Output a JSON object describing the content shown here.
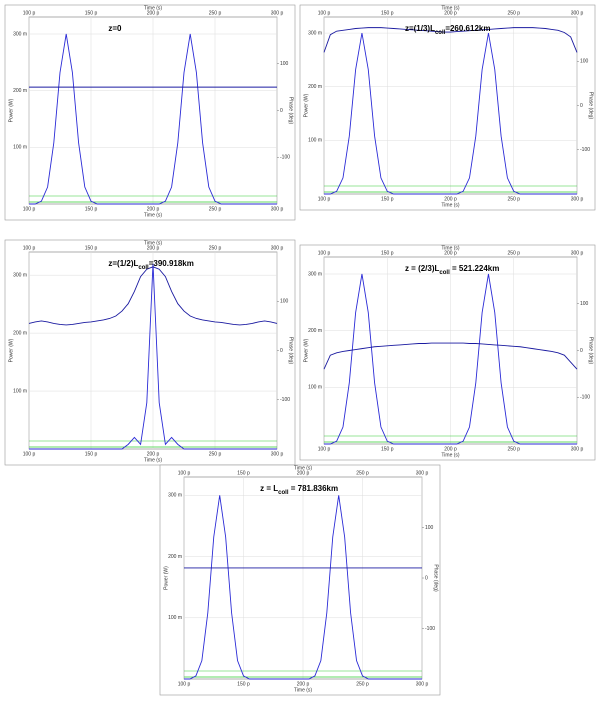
{
  "chart_data": [
    {
      "type": "line",
      "title": "z=0",
      "x_label": "Time (s)",
      "y_label": "Power (W)",
      "y2_label": "Phase (deg)",
      "x": [
        100,
        105,
        110,
        115,
        120,
        125,
        130,
        135,
        140,
        145,
        150,
        155,
        160,
        165,
        170,
        175,
        180,
        185,
        190,
        195,
        200,
        205,
        210,
        215,
        220,
        225,
        230,
        235,
        240,
        245,
        250,
        255,
        260,
        265,
        270,
        275,
        280,
        285,
        290,
        295,
        300
      ],
      "xlim": [
        100,
        300
      ],
      "xticks": [
        {
          "value": 100,
          "label": "100 p"
        },
        {
          "value": 150,
          "label": "150 p"
        },
        {
          "value": 200,
          "label": "200 p"
        },
        {
          "value": 250,
          "label": "250 p"
        },
        {
          "value": 300,
          "label": "300 p"
        }
      ],
      "ylim": [
        0,
        330
      ],
      "yticks": [
        {
          "value": 100,
          "label": "100 m"
        },
        {
          "value": 200,
          "label": "200 m"
        },
        {
          "value": 300,
          "label": "300 m"
        }
      ],
      "y2lim": [
        -200,
        200
      ],
      "y2ticks": [
        -100,
        0,
        100
      ],
      "grid": true,
      "series": [
        {
          "color": "#2b2bd6",
          "values": [
            0,
            0,
            5,
            30,
            108,
            232,
            300,
            232,
            108,
            30,
            5,
            0,
            0,
            0,
            0,
            0,
            0,
            0,
            0,
            0,
            0,
            0,
            5,
            30,
            108,
            232,
            300,
            232,
            108,
            30,
            5,
            0,
            0,
            0,
            0,
            0,
            0,
            0,
            0,
            0,
            0
          ]
        },
        {
          "color": "#1a1aa0",
          "axis": "y2",
          "values": [
            50,
            50,
            50,
            50,
            50,
            50,
            50,
            50,
            50,
            50,
            50,
            50,
            50,
            50,
            50,
            50,
            50,
            50,
            50,
            50,
            50,
            50,
            50,
            50,
            50,
            50,
            50,
            50,
            50,
            50,
            50,
            50,
            50,
            50,
            50,
            50,
            50,
            50,
            50,
            50,
            50
          ]
        }
      ]
    },
    {
      "type": "line",
      "title": "z=(1/3)L",
      "title_sub": "coll",
      "title_end": "=260.612km",
      "x_label": "Time (s)",
      "y_label": "Power (W)",
      "y2_label": "Phase (deg)",
      "x": [
        100,
        105,
        110,
        115,
        120,
        125,
        130,
        135,
        140,
        145,
        150,
        155,
        160,
        165,
        170,
        175,
        180,
        185,
        190,
        195,
        200,
        205,
        210,
        215,
        220,
        225,
        230,
        235,
        240,
        245,
        250,
        255,
        260,
        265,
        270,
        275,
        280,
        285,
        290,
        295,
        300
      ],
      "xlim": [
        100,
        300
      ],
      "xticks": [
        {
          "value": 100,
          "label": "100 p"
        },
        {
          "value": 150,
          "label": "150 p"
        },
        {
          "value": 200,
          "label": "200 p"
        },
        {
          "value": 250,
          "label": "250 p"
        },
        {
          "value": 300,
          "label": "300 p"
        }
      ],
      "ylim": [
        0,
        330
      ],
      "yticks": [
        {
          "value": 100,
          "label": "100 m"
        },
        {
          "value": 200,
          "label": "200 m"
        },
        {
          "value": 300,
          "label": "300 m"
        }
      ],
      "y2lim": [
        -200,
        200
      ],
      "y2ticks": [
        -100,
        0,
        100
      ],
      "grid": true,
      "series": [
        {
          "color": "#2b2bd6",
          "values": [
            0,
            0,
            5,
            30,
            108,
            232,
            300,
            232,
            108,
            30,
            5,
            0,
            0,
            0,
            0,
            0,
            0,
            0,
            0,
            0,
            0,
            0,
            5,
            30,
            108,
            232,
            300,
            232,
            108,
            30,
            5,
            0,
            0,
            0,
            0,
            0,
            0,
            0,
            0,
            0,
            0
          ]
        },
        {
          "color": "#1a1aa0",
          "axis": "y2",
          "values": [
            120,
            160,
            168,
            170,
            172,
            174,
            175,
            176,
            176,
            176,
            175,
            174,
            173,
            172,
            171,
            170,
            169,
            168,
            167,
            166,
            166,
            167,
            168,
            169,
            170,
            171,
            172,
            173,
            174,
            175,
            176,
            176,
            176,
            176,
            175,
            174,
            172,
            170,
            165,
            155,
            120
          ]
        }
      ]
    },
    {
      "type": "line",
      "title": "z=(1/2)L",
      "title_sub": "coll",
      "title_end": "=390.918km",
      "x_label": "Time (s)",
      "y_label": "Power (W)",
      "y2_label": "Phase (deg)",
      "x": [
        100,
        105,
        110,
        115,
        120,
        125,
        130,
        135,
        140,
        145,
        150,
        155,
        160,
        165,
        170,
        175,
        180,
        185,
        190,
        195,
        200,
        205,
        210,
        215,
        220,
        225,
        230,
        235,
        240,
        245,
        250,
        255,
        260,
        265,
        270,
        275,
        280,
        285,
        290,
        295,
        300
      ],
      "xlim": [
        100,
        300
      ],
      "xticks": [
        {
          "value": 100,
          "label": "100 p"
        },
        {
          "value": 150,
          "label": "150 p"
        },
        {
          "value": 200,
          "label": "200 p"
        },
        {
          "value": 250,
          "label": "250 p"
        },
        {
          "value": 300,
          "label": "300 p"
        }
      ],
      "ylim": [
        0,
        340
      ],
      "yticks": [
        {
          "value": 100,
          "label": "100 m"
        },
        {
          "value": 200,
          "label": "200 m"
        },
        {
          "value": 300,
          "label": "300 m"
        }
      ],
      "y2lim": [
        -200,
        200
      ],
      "y2ticks": [
        -100,
        0,
        100
      ],
      "grid": true,
      "series": [
        {
          "color": "#2b2bd6",
          "values": [
            0,
            0,
            0,
            0,
            0,
            0,
            0,
            0,
            0,
            0,
            0,
            0,
            0,
            0,
            0,
            0,
            8,
            20,
            8,
            80,
            320,
            80,
            8,
            20,
            8,
            0,
            0,
            0,
            0,
            0,
            0,
            0,
            0,
            0,
            0,
            0,
            0,
            0,
            0,
            0,
            0
          ]
        },
        {
          "color": "#1a1aa0",
          "axis": "y2",
          "values": [
            55,
            58,
            60,
            58,
            55,
            53,
            52,
            53,
            55,
            57,
            58,
            60,
            62,
            65,
            70,
            80,
            95,
            120,
            150,
            165,
            170,
            165,
            150,
            120,
            95,
            80,
            70,
            65,
            62,
            60,
            58,
            57,
            55,
            53,
            52,
            53,
            55,
            58,
            60,
            58,
            55
          ]
        }
      ]
    },
    {
      "type": "line",
      "title": "z = (2/3)L",
      "title_sub": "coll",
      "title_end": " = 521.224km",
      "x_label": "Time (s)",
      "y_label": "Power (W)",
      "y2_label": "Phase (deg)",
      "x": [
        100,
        105,
        110,
        115,
        120,
        125,
        130,
        135,
        140,
        145,
        150,
        155,
        160,
        165,
        170,
        175,
        180,
        185,
        190,
        195,
        200,
        205,
        210,
        215,
        220,
        225,
        230,
        235,
        240,
        245,
        250,
        255,
        260,
        265,
        270,
        275,
        280,
        285,
        290,
        295,
        300
      ],
      "xlim": [
        100,
        300
      ],
      "xticks": [
        {
          "value": 100,
          "label": "100 p"
        },
        {
          "value": 150,
          "label": "150 p"
        },
        {
          "value": 200,
          "label": "200 p"
        },
        {
          "value": 250,
          "label": "250 p"
        },
        {
          "value": 300,
          "label": "300 p"
        }
      ],
      "ylim": [
        0,
        330
      ],
      "yticks": [
        {
          "value": 100,
          "label": "100 m"
        },
        {
          "value": 200,
          "label": "200 m"
        },
        {
          "value": 300,
          "label": "300 m"
        }
      ],
      "y2lim": [
        -200,
        200
      ],
      "y2ticks": [
        -100,
        0,
        100
      ],
      "grid": true,
      "series": [
        {
          "color": "#2b2bd6",
          "values": [
            0,
            0,
            5,
            30,
            108,
            232,
            300,
            232,
            108,
            30,
            5,
            0,
            0,
            0,
            0,
            0,
            0,
            0,
            0,
            0,
            0,
            0,
            5,
            30,
            108,
            232,
            300,
            232,
            108,
            30,
            5,
            0,
            0,
            0,
            0,
            0,
            0,
            0,
            0,
            0,
            0
          ]
        },
        {
          "color": "#1a1aa0",
          "axis": "y2",
          "values": [
            -40,
            -10,
            -5,
            -2,
            0,
            2,
            4,
            6,
            8,
            9,
            10,
            11,
            12,
            13,
            14,
            15,
            15,
            16,
            16,
            16,
            16,
            16,
            16,
            15,
            15,
            14,
            13,
            12,
            11,
            10,
            9,
            8,
            6,
            4,
            2,
            0,
            -2,
            -5,
            -10,
            -25,
            -40
          ]
        }
      ]
    },
    {
      "type": "line",
      "title": "z = L",
      "title_sub": "coll",
      "title_end": " = 781.836km",
      "x_label": "Time (s)",
      "y_label": "Power (W)",
      "y2_label": "Phase (deg)",
      "x": [
        100,
        105,
        110,
        115,
        120,
        125,
        130,
        135,
        140,
        145,
        150,
        155,
        160,
        165,
        170,
        175,
        180,
        185,
        190,
        195,
        200,
        205,
        210,
        215,
        220,
        225,
        230,
        235,
        240,
        245,
        250,
        255,
        260,
        265,
        270,
        275,
        280,
        285,
        290,
        295,
        300
      ],
      "xlim": [
        100,
        300
      ],
      "xticks": [
        {
          "value": 100,
          "label": "100 p"
        },
        {
          "value": 150,
          "label": "150 p"
        },
        {
          "value": 200,
          "label": "200 p"
        },
        {
          "value": 250,
          "label": "250 p"
        },
        {
          "value": 300,
          "label": "300 p"
        }
      ],
      "ylim": [
        0,
        330
      ],
      "yticks": [
        {
          "value": 100,
          "label": "100 m"
        },
        {
          "value": 200,
          "label": "200 m"
        },
        {
          "value": 300,
          "label": "300 m"
        }
      ],
      "y2lim": [
        -200,
        200
      ],
      "y2ticks": [
        -100,
        0,
        100
      ],
      "grid": true,
      "series": [
        {
          "color": "#2b2bd6",
          "values": [
            0,
            0,
            5,
            30,
            108,
            232,
            300,
            232,
            108,
            30,
            5,
            0,
            0,
            0,
            0,
            0,
            0,
            0,
            0,
            0,
            0,
            0,
            5,
            30,
            108,
            232,
            300,
            232,
            108,
            30,
            5,
            0,
            0,
            0,
            0,
            0,
            0,
            0,
            0,
            0,
            0
          ]
        },
        {
          "color": "#1a1aa0",
          "axis": "y2",
          "values": [
            20,
            20,
            20,
            20,
            20,
            20,
            20,
            20,
            20,
            20,
            20,
            20,
            20,
            20,
            20,
            20,
            20,
            20,
            20,
            20,
            20,
            20,
            20,
            20,
            20,
            20,
            20,
            20,
            20,
            20,
            20,
            20,
            20,
            20,
            20,
            20,
            20,
            20,
            20,
            20,
            20
          ]
        }
      ]
    }
  ]
}
